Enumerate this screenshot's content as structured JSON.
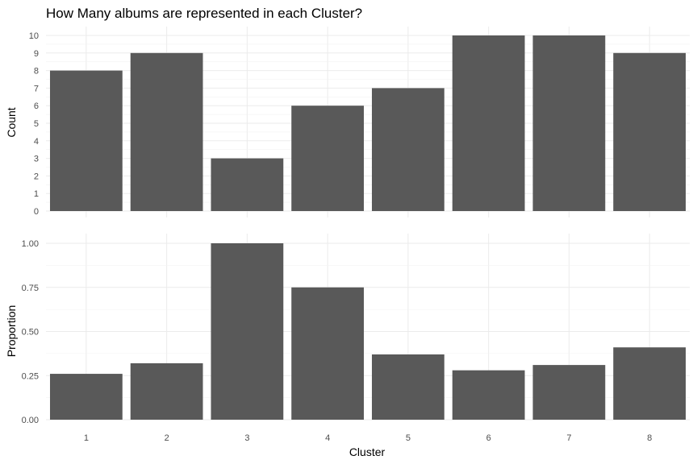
{
  "chart_data": [
    {
      "type": "bar",
      "title": "How Many albums are represented in each Cluster?",
      "xlabel": "",
      "ylabel": "Count",
      "categories": [
        "1",
        "2",
        "3",
        "4",
        "5",
        "6",
        "7",
        "8"
      ],
      "values": [
        8,
        9,
        3,
        6,
        7,
        10,
        10,
        9
      ],
      "ylim": [
        0,
        10
      ],
      "yticks": [
        "0",
        "1",
        "2",
        "3",
        "4",
        "5",
        "6",
        "7",
        "8",
        "9",
        "10"
      ],
      "grid": true
    },
    {
      "type": "bar",
      "title": "",
      "xlabel": "Cluster",
      "ylabel": "Proportion",
      "categories": [
        "1",
        "2",
        "3",
        "4",
        "5",
        "6",
        "7",
        "8"
      ],
      "values": [
        0.26,
        0.32,
        1.0,
        0.75,
        0.37,
        0.28,
        0.31,
        0.41
      ],
      "ylim": [
        0,
        1
      ],
      "yticks": [
        "0.00",
        "0.25",
        "0.50",
        "0.75",
        "1.00"
      ],
      "grid": true
    }
  ],
  "colors": {
    "bar": "#595959",
    "grid": "#ebebeb",
    "background": "#ffffff"
  }
}
